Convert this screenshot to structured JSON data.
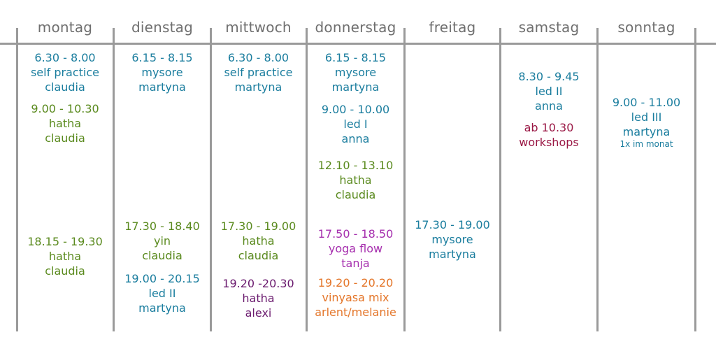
{
  "colors": {
    "blue": "#1a7d9e",
    "green": "#5a8a1e",
    "purple": "#6a1a6e",
    "magenta": "#a62fae",
    "orange": "#e4762a",
    "maroon": "#9a1845",
    "grid": "#9a9a9a",
    "header_text": "#6f6f6f"
  },
  "days": [
    "montag",
    "dienstag",
    "mittwoch",
    "donnerstag",
    "freitag",
    "samstag",
    "sonntag"
  ],
  "classes": {
    "montag": [
      {
        "time": "6.30 - 8.00",
        "name": "self practice",
        "teacher": "claudia",
        "color": "blue"
      },
      {
        "time": "9.00 - 10.30",
        "name": "hatha",
        "teacher": "claudia",
        "color": "green"
      },
      {
        "time": "18.15 - 19.30",
        "name": "hatha",
        "teacher": "claudia",
        "color": "green"
      }
    ],
    "dienstag": [
      {
        "time": "6.15 - 8.15",
        "name": "mysore",
        "teacher": "martyna",
        "color": "blue"
      },
      {
        "time": "17.30 - 18.40",
        "name": "yin",
        "teacher": "claudia",
        "color": "green"
      },
      {
        "time": "19.00 - 20.15",
        "name": "led II",
        "teacher": "martyna",
        "color": "blue"
      }
    ],
    "mittwoch": [
      {
        "time": "6.30 - 8.00",
        "name": "self practice",
        "teacher": "martyna",
        "color": "blue"
      },
      {
        "time": "17.30 - 19.00",
        "name": "hatha",
        "teacher": "claudia",
        "color": "green"
      },
      {
        "time": "19.20 -20.30",
        "name": "hatha",
        "teacher": "alexi",
        "color": "purple"
      }
    ],
    "donnerstag": [
      {
        "time": "6.15 - 8.15",
        "name": "mysore",
        "teacher": "martyna",
        "color": "blue"
      },
      {
        "time": "9.00 - 10.00",
        "name": "led I",
        "teacher": "anna",
        "color": "blue"
      },
      {
        "time": "12.10 - 13.10",
        "name": "hatha",
        "teacher": "claudia",
        "color": "green"
      },
      {
        "time": "17.50 - 18.50",
        "name": "yoga flow",
        "teacher": "tanja",
        "color": "magenta"
      },
      {
        "time": "19.20 - 20.20",
        "name": "vinyasa mix",
        "teacher": "arlent/melanie",
        "color": "orange"
      }
    ],
    "freitag": [
      {
        "time": "17.30 - 19.00",
        "name": "mysore",
        "teacher": "martyna",
        "color": "blue"
      }
    ],
    "samstag": [
      {
        "time": "8.30 - 9.45",
        "name": "led II",
        "teacher": "anna",
        "color": "blue"
      },
      {
        "time": "ab 10.30",
        "name": "workshops",
        "teacher": "",
        "color": "maroon"
      }
    ],
    "sonntag": [
      {
        "time": "9.00 - 11.00",
        "name": "led III",
        "teacher": "martyna",
        "note": "1x im monat",
        "color": "blue"
      }
    ]
  }
}
